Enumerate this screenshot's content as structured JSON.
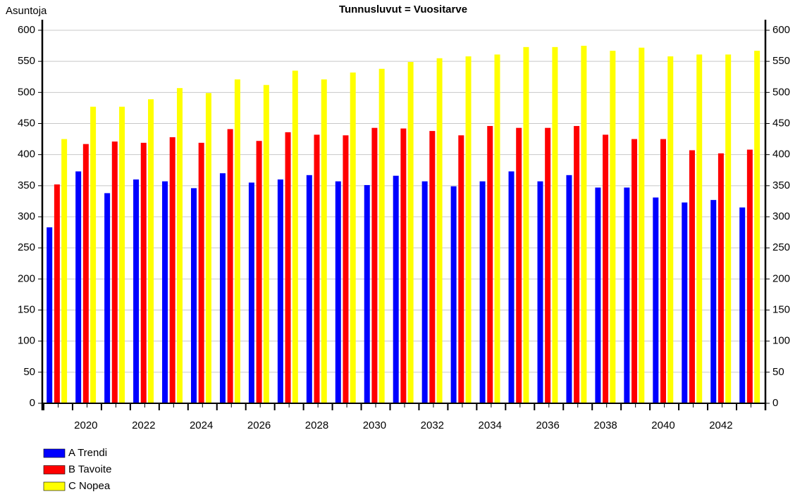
{
  "chart_data": {
    "type": "bar",
    "title": "Tunnusluvut = Vuositarve",
    "y_label": "Asuntoja",
    "categories": [
      null,
      "2020",
      null,
      "2022",
      null,
      "2024",
      null,
      "2026",
      null,
      "2028",
      null,
      "2030",
      null,
      "2032",
      null,
      "2034",
      null,
      "2036",
      null,
      "2038",
      null,
      "2040",
      null,
      "2042",
      null
    ],
    "series": [
      {
        "name": "A Trendi",
        "color": "#0000ff",
        "values": [
          283,
          373,
          338,
          360,
          357,
          346,
          370,
          355,
          360,
          367,
          357,
          351,
          366,
          357,
          349,
          357,
          373,
          357,
          367,
          347,
          347,
          331,
          323,
          327,
          315
        ]
      },
      {
        "name": "B Tavoite",
        "color": "#ff0000",
        "values": [
          352,
          417,
          421,
          419,
          428,
          419,
          441,
          422,
          436,
          432,
          431,
          443,
          442,
          438,
          431,
          446,
          443,
          443,
          446,
          432,
          425,
          425,
          407,
          402,
          408
        ]
      },
      {
        "name": "C Nopea",
        "color": "#ffff00",
        "values": [
          425,
          477,
          477,
          489,
          507,
          499,
          521,
          512,
          535,
          521,
          532,
          538,
          549,
          555,
          558,
          561,
          573,
          573,
          575,
          567,
          572,
          558,
          561,
          561,
          567
        ]
      }
    ],
    "ylim": [
      0,
      600
    ],
    "yticks": [
      0,
      50,
      100,
      150,
      200,
      250,
      300,
      350,
      400,
      450,
      500,
      550,
      600
    ],
    "y2lim": [
      0,
      600
    ],
    "y2ticks": [
      0,
      50,
      100,
      150,
      200,
      250,
      300,
      350,
      400,
      450,
      500,
      550,
      600
    ],
    "grid": true,
    "legend": "bottom-left"
  }
}
